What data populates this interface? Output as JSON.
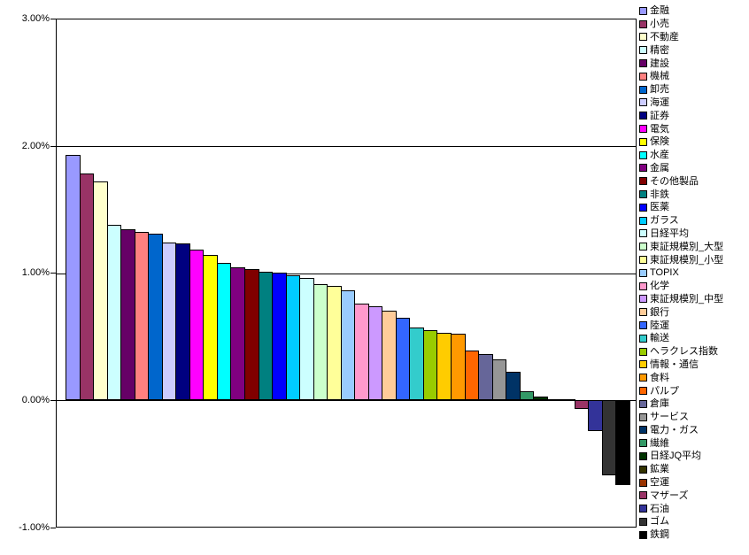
{
  "chart_data": {
    "type": "bar",
    "title": "",
    "xlabel": "",
    "ylabel": "",
    "ylim": [
      -1.0,
      3.0
    ],
    "y_ticks": [
      "3.00%",
      "2.00%",
      "1.00%",
      "0.00%",
      "-1.00%"
    ],
    "grid": "horizontal",
    "legend_position": "right",
    "sorted": "descending",
    "value_unit": "%",
    "bar_outline_color": "#000000",
    "background_color": "#FFFFFF",
    "categories": [
      "金融",
      "小売",
      "不動産",
      "精密",
      "建設",
      "機械",
      "卸売",
      "海運",
      "証券",
      "電気",
      "保険",
      "水産",
      "金属",
      "その他製品",
      "非鉄",
      "医薬",
      "ガラス",
      "日経平均",
      "東証規模別_大型",
      "東証規模別_小型",
      "TOPIX",
      "化学",
      "東証規模別_中型",
      "銀行",
      "陸運",
      "輸送",
      "ヘラクレス指数",
      "情報・通信",
      "食料",
      "パルプ",
      "倉庫",
      "サービス",
      "電力・ガス",
      "繊維",
      "日経JQ平均",
      "鉱業",
      "空運",
      "マザーズ",
      "石油",
      "ゴム",
      "鉄鋼"
    ],
    "values": [
      1.93,
      1.78,
      1.72,
      1.38,
      1.34,
      1.32,
      1.31,
      1.24,
      1.23,
      1.18,
      1.14,
      1.08,
      1.04,
      1.03,
      1.01,
      1.0,
      0.98,
      0.96,
      0.91,
      0.9,
      0.86,
      0.76,
      0.74,
      0.7,
      0.65,
      0.57,
      0.55,
      0.53,
      0.52,
      0.39,
      0.36,
      0.32,
      0.22,
      0.07,
      0.03,
      0.01,
      0.0,
      -0.07,
      -0.24,
      -0.59,
      -0.67
    ],
    "colors": [
      "#9999FF",
      "#993366",
      "#FFFFCC",
      "#CCFFFF",
      "#660066",
      "#FF8080",
      "#0066CC",
      "#CCCCFF",
      "#000080",
      "#FF00FF",
      "#FFFF00",
      "#00FFFF",
      "#800080",
      "#800000",
      "#008080",
      "#0000FF",
      "#00CCFF",
      "#CCFFFF",
      "#CCFFCC",
      "#FFFF99",
      "#99CCFF",
      "#FF99CC",
      "#CC99FF",
      "#FFCC99",
      "#3366FF",
      "#33CCCC",
      "#99CC00",
      "#FFCC00",
      "#FF9900",
      "#FF6600",
      "#666699",
      "#969696",
      "#003366",
      "#339966",
      "#003300",
      "#333300",
      "#993300",
      "#993366",
      "#333399",
      "#333333",
      "#000000"
    ]
  }
}
